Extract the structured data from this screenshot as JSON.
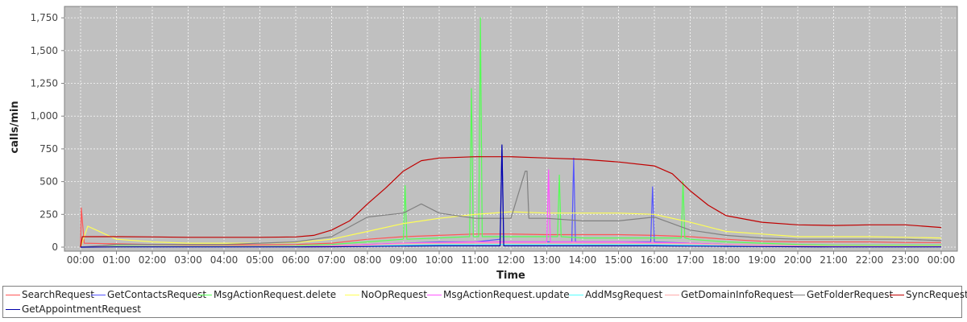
{
  "chart_data": {
    "type": "line",
    "title": "",
    "xlabel": "Time",
    "ylabel": "calls/min",
    "ylim": [
      0,
      1800
    ],
    "yticks": [
      0,
      250,
      500,
      750,
      1000,
      1250,
      1500,
      1750
    ],
    "ytick_labels": [
      "0",
      "250",
      "500",
      "750",
      "1,000",
      "1,250",
      "1,500",
      "1,750"
    ],
    "xticks": [
      "00:00",
      "01:00",
      "02:00",
      "03:00",
      "04:00",
      "05:00",
      "06:00",
      "07:00",
      "08:00",
      "09:00",
      "10:00",
      "11:00",
      "12:00",
      "13:00",
      "14:00",
      "15:00",
      "16:00",
      "17:00",
      "18:00",
      "19:00",
      "20:00",
      "21:00",
      "22:00",
      "23:00",
      "00:00"
    ],
    "xlim_hours": [
      0,
      24
    ],
    "grid": true,
    "background": "#c0c0c0",
    "legend_position": "bottom",
    "series": [
      {
        "name": "SearchRequest",
        "color": "#ff5555",
        "x": [
          0,
          0.02,
          0.1,
          1,
          2,
          3,
          4,
          5,
          6,
          7,
          8,
          9,
          10,
          11,
          12,
          13,
          14,
          15,
          16,
          17,
          18,
          19,
          20,
          21,
          22,
          23,
          24
        ],
        "y": [
          0,
          300,
          30,
          25,
          20,
          18,
          18,
          18,
          20,
          30,
          60,
          80,
          90,
          100,
          100,
          95,
          95,
          95,
          90,
          80,
          60,
          45,
          40,
          40,
          40,
          35,
          35
        ]
      },
      {
        "name": "GetContactsRequest",
        "color": "#5555ff",
        "x": [
          0,
          1,
          2,
          3,
          4,
          5,
          6,
          7,
          8,
          9,
          10,
          11,
          11.7,
          11.75,
          11.8,
          12,
          13,
          13.7,
          13.75,
          13.8,
          14,
          15,
          15.9,
          15.95,
          16,
          17,
          18,
          19,
          20,
          21,
          22,
          23,
          24
        ],
        "y": [
          0,
          5,
          5,
          5,
          5,
          5,
          5,
          8,
          20,
          30,
          40,
          40,
          60,
          770,
          40,
          40,
          40,
          40,
          680,
          40,
          40,
          40,
          40,
          460,
          40,
          30,
          20,
          10,
          8,
          6,
          5,
          5,
          5
        ]
      },
      {
        "name": "MsgActionRequest.delete",
        "color": "#55ff55",
        "x": [
          0,
          1,
          2,
          3,
          4,
          5,
          6,
          7,
          8,
          9,
          9.05,
          9.1,
          10,
          10.85,
          10.9,
          10.95,
          11.1,
          11.15,
          11.2,
          12,
          13,
          13.3,
          13.35,
          13.4,
          14,
          15,
          16,
          16.75,
          16.8,
          16.85,
          17,
          18,
          19,
          20,
          21,
          22,
          23,
          24
        ],
        "y": [
          0,
          10,
          8,
          8,
          8,
          8,
          10,
          20,
          40,
          60,
          470,
          60,
          70,
          80,
          1210,
          80,
          80,
          1750,
          80,
          80,
          80,
          80,
          550,
          80,
          70,
          70,
          70,
          70,
          500,
          70,
          60,
          40,
          30,
          20,
          15,
          15,
          15,
          15
        ]
      },
      {
        "name": "NoOpRequest",
        "color": "#ffff55",
        "x": [
          0,
          0.2,
          1,
          2,
          3,
          4,
          5,
          6,
          7,
          8,
          9,
          10,
          11,
          12,
          13,
          14,
          15,
          16,
          17,
          18,
          19,
          20,
          21,
          22,
          23,
          24
        ],
        "y": [
          0,
          160,
          60,
          40,
          30,
          30,
          30,
          35,
          60,
          120,
          180,
          220,
          250,
          270,
          260,
          260,
          260,
          250,
          190,
          120,
          100,
          80,
          80,
          80,
          75,
          70
        ]
      },
      {
        "name": "MsgActionRequest.update",
        "color": "#ff55ff",
        "x": [
          0,
          1,
          2,
          3,
          4,
          5,
          6,
          7,
          8,
          9,
          10,
          11,
          12,
          13,
          13.05,
          13.1,
          14,
          15,
          16,
          17,
          18,
          19,
          20,
          21,
          22,
          23,
          24
        ],
        "y": [
          0,
          5,
          5,
          5,
          5,
          5,
          5,
          10,
          20,
          30,
          35,
          40,
          40,
          40,
          590,
          40,
          40,
          40,
          35,
          30,
          20,
          15,
          10,
          8,
          6,
          5,
          5
        ]
      },
      {
        "name": "AddMsgRequest",
        "color": "#55ffff",
        "x": [
          0,
          1,
          2,
          3,
          4,
          5,
          6,
          7,
          8,
          9,
          10,
          11,
          12,
          13,
          14,
          15,
          16,
          17,
          18,
          19,
          20,
          21,
          22,
          23,
          24
        ],
        "y": [
          0,
          3,
          3,
          3,
          3,
          3,
          3,
          5,
          10,
          15,
          18,
          20,
          20,
          20,
          20,
          20,
          18,
          15,
          10,
          8,
          6,
          5,
          5,
          4,
          4
        ]
      },
      {
        "name": "GetDomainInfoRequest",
        "color": "#ffaaaa",
        "x": [
          0,
          1,
          2,
          3,
          4,
          5,
          6,
          7,
          8,
          9,
          10,
          11,
          12,
          13,
          14,
          15,
          16,
          17,
          18,
          19,
          20,
          21,
          22,
          23,
          24
        ],
        "y": [
          0,
          5,
          5,
          5,
          5,
          5,
          5,
          8,
          15,
          25,
          30,
          30,
          30,
          30,
          30,
          30,
          28,
          25,
          18,
          12,
          10,
          8,
          8,
          8,
          8
        ]
      },
      {
        "name": "GetFolderRequest",
        "color": "#808080",
        "x": [
          0,
          1,
          2,
          3,
          4,
          5,
          6,
          7,
          8,
          9,
          9.5,
          10,
          11,
          12,
          12.4,
          12.45,
          12.5,
          13,
          14,
          15,
          16,
          17,
          18,
          19,
          20,
          21,
          22,
          23,
          24
        ],
        "y": [
          0,
          20,
          20,
          20,
          20,
          30,
          40,
          80,
          230,
          260,
          330,
          260,
          220,
          220,
          580,
          580,
          220,
          220,
          200,
          200,
          230,
          130,
          90,
          70,
          60,
          60,
          60,
          60,
          50
        ]
      },
      {
        "name": "SyncRequest",
        "color": "#c00000",
        "x": [
          0,
          0.05,
          0.1,
          1,
          2,
          3,
          4,
          5,
          6,
          6.5,
          7,
          7.5,
          8,
          8.5,
          9,
          9.5,
          10,
          11,
          12,
          13,
          14,
          15,
          16,
          16.5,
          17,
          17.5,
          18,
          19,
          20,
          21,
          22,
          23,
          24
        ],
        "y": [
          0,
          80,
          80,
          80,
          78,
          75,
          75,
          75,
          78,
          90,
          130,
          200,
          330,
          450,
          580,
          660,
          680,
          690,
          690,
          680,
          670,
          650,
          620,
          560,
          430,
          320,
          240,
          190,
          170,
          165,
          170,
          170,
          150
        ]
      },
      {
        "name": "GetAppointmentRequest",
        "color": "#0000aa",
        "x": [
          0,
          1,
          2,
          3,
          4,
          5,
          6,
          7,
          8,
          9,
          10,
          11,
          11.7,
          11.75,
          11.8,
          12,
          13,
          14,
          15,
          16,
          17,
          18,
          19,
          20,
          21,
          22,
          23,
          24
        ],
        "y": [
          0,
          2,
          2,
          2,
          2,
          2,
          2,
          3,
          5,
          8,
          10,
          10,
          10,
          780,
          10,
          10,
          10,
          10,
          10,
          10,
          8,
          6,
          4,
          3,
          2,
          2,
          2,
          2
        ]
      }
    ]
  }
}
